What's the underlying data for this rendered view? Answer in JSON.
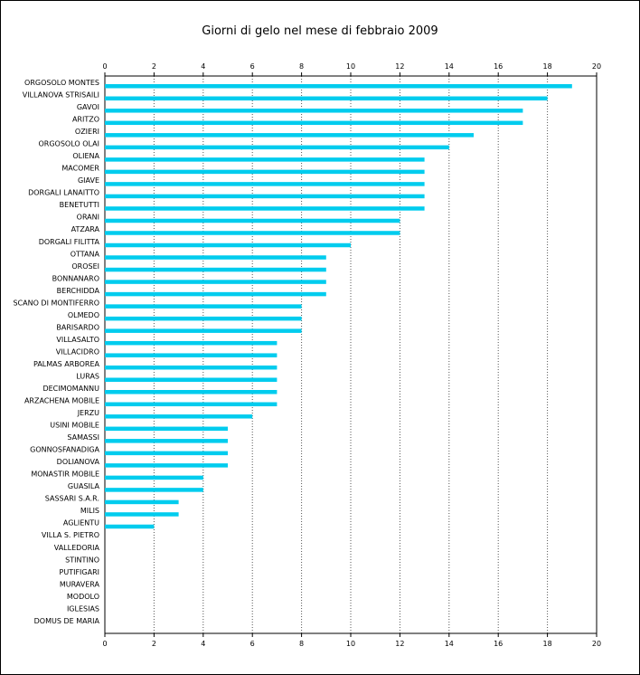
{
  "chart_data": {
    "type": "bar",
    "orientation": "horizontal",
    "title": "Giorni di gelo nel mese di febbraio 2009",
    "xlabel": "",
    "ylabel": "",
    "xlim": [
      0,
      20
    ],
    "xticks": [
      "0",
      "2",
      "4",
      "6",
      "8",
      "10",
      "12",
      "14",
      "16",
      "18",
      "20"
    ],
    "grid": "vertical dotted",
    "bar_color": "#00ccee",
    "categories": [
      "ORGOSOLO MONTES",
      "VILLANOVA STRISAILI",
      "GAVOI",
      "ARITZO",
      "OZIERI",
      "ORGOSOLO OLAI",
      "OLIENA",
      "MACOMER",
      "GIAVE",
      "DORGALI LANAITTO",
      "BENETUTTI",
      "ORANI",
      "ATZARA",
      "DORGALI FILITTA",
      "OTTANA",
      "OROSEI",
      "BONNANARO",
      "BERCHIDDA",
      "SCANO DI MONTIFERRO",
      "OLMEDO",
      "BARISARDO",
      "VILLASALTO",
      "VILLACIDRO",
      "PALMAS ARBOREA",
      "LURAS",
      "DECIMOMANNU",
      "ARZACHENA MOBILE",
      "JERZU",
      "USINI MOBILE",
      "SAMASSI",
      "GONNOSFANADIGA",
      "DOLIANOVA",
      "MONASTIR MOBILE",
      "GUASILA",
      "SASSARI S.A.R.",
      "MILIS",
      "AGLIENTU",
      "VILLA S. PIETRO",
      "VALLEDORIA",
      "STINTINO",
      "PUTIFIGARI",
      "MURAVERA",
      "MODOLO",
      "IGLESIAS",
      "DOMUS DE MARIA"
    ],
    "values": [
      19,
      18,
      17,
      17,
      15,
      14,
      13,
      13,
      13,
      13,
      13,
      12,
      12,
      10,
      9,
      9,
      9,
      9,
      8,
      8,
      8,
      7,
      7,
      7,
      7,
      7,
      7,
      6,
      5,
      5,
      5,
      5,
      4,
      4,
      3,
      3,
      2,
      0,
      0,
      0,
      0,
      0,
      0,
      0,
      0
    ]
  }
}
